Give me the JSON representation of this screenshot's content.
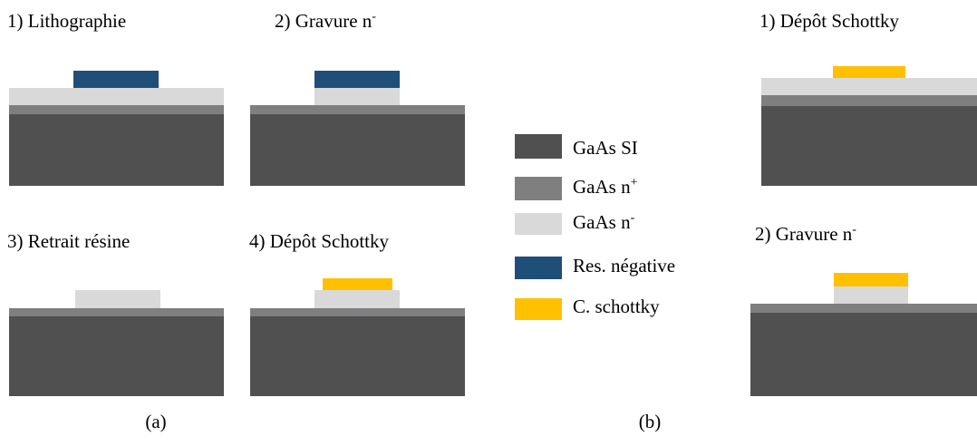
{
  "panels": [
    {
      "title": {
        "text": "1) Lithographie"
      }
    },
    {
      "title": {
        "text": "2) Gravure n",
        "sup": "-"
      }
    },
    {
      "title": {
        "text": "3) Retrait résine"
      }
    },
    {
      "title": {
        "text": "4) Dépôt Schottky"
      }
    },
    {
      "title": {
        "text": "1) Dépôt Schottky"
      }
    },
    {
      "title": {
        "text": "2) Gravure n",
        "sup": "-"
      }
    }
  ],
  "legend": [
    {
      "label": {
        "text": "GaAs SI"
      },
      "color": "#505050"
    },
    {
      "label": {
        "text": "GaAs n",
        "sup": "+"
      },
      "color": "#7f7f7f"
    },
    {
      "label": {
        "text": "GaAs n",
        "sup": "-"
      },
      "color": "#d9d9d9"
    },
    {
      "label": {
        "text": "Res. négative"
      },
      "color": "#1f4e79"
    },
    {
      "label": {
        "text": "C. schottky"
      },
      "color": "#ffc000"
    }
  ],
  "captions": [
    "(a)",
    "(b)"
  ]
}
